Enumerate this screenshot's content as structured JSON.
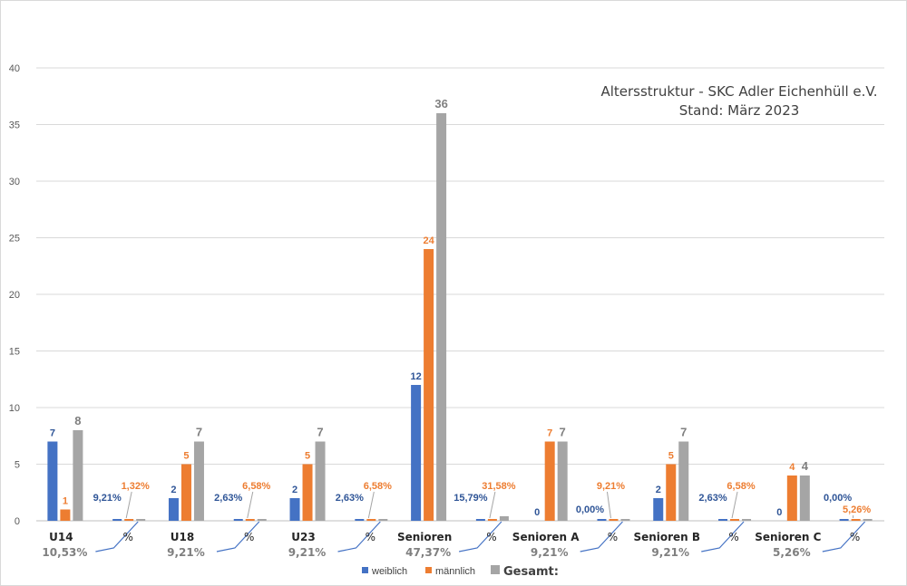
{
  "chart_data": {
    "type": "bar",
    "title": "Altersstruktur - SKC Adler Eichenhüll e.V.",
    "subtitle": "Stand: März 2023",
    "ylim": [
      0,
      40
    ],
    "yticks": [
      "0",
      "5",
      "10",
      "15",
      "20",
      "25",
      "30",
      "35",
      "40"
    ],
    "pct_axis_label": "%",
    "colors": {
      "weiblich": "#4472c4",
      "maennlich": "#ed7d31",
      "gesamt": "#a5a5a5"
    },
    "categories": [
      {
        "name": "U14",
        "total_pct": "10,53%",
        "weiblich": 7,
        "maennlich": 1,
        "gesamt": 8,
        "weiblich_pct": "9,21%",
        "maennlich_pct": "1,32%"
      },
      {
        "name": "U18",
        "total_pct": "9,21%",
        "weiblich": 2,
        "maennlich": 5,
        "gesamt": 7,
        "weiblich_pct": "2,63%",
        "maennlich_pct": "6,58%"
      },
      {
        "name": "U23",
        "total_pct": "9,21%",
        "weiblich": 2,
        "maennlich": 5,
        "gesamt": 7,
        "weiblich_pct": "2,63%",
        "maennlich_pct": "6,58%"
      },
      {
        "name": "Senioren",
        "total_pct": "47,37%",
        "weiblich": 12,
        "maennlich": 24,
        "gesamt": 36,
        "weiblich_pct": "15,79%",
        "maennlich_pct": "31,58%"
      },
      {
        "name": "Senioren A",
        "total_pct": "9,21%",
        "weiblich": 0,
        "maennlich": 7,
        "gesamt": 7,
        "weiblich_pct": "0,00%",
        "maennlich_pct": "9,21%"
      },
      {
        "name": "Senioren B",
        "total_pct": "9,21%",
        "weiblich": 2,
        "maennlich": 5,
        "gesamt": 7,
        "weiblich_pct": "2,63%",
        "maennlich_pct": "6,58%"
      },
      {
        "name": "Senioren C",
        "total_pct": "5,26%",
        "weiblich": 0,
        "maennlich": 4,
        "gesamt": 4,
        "weiblich_pct": "0,00%",
        "maennlich_pct": "5,26%"
      }
    ],
    "legend": {
      "weiblich": "weiblich",
      "maennlich": "männlich",
      "gesamt": "Gesamt:"
    },
    "legend_position": "bottom"
  }
}
